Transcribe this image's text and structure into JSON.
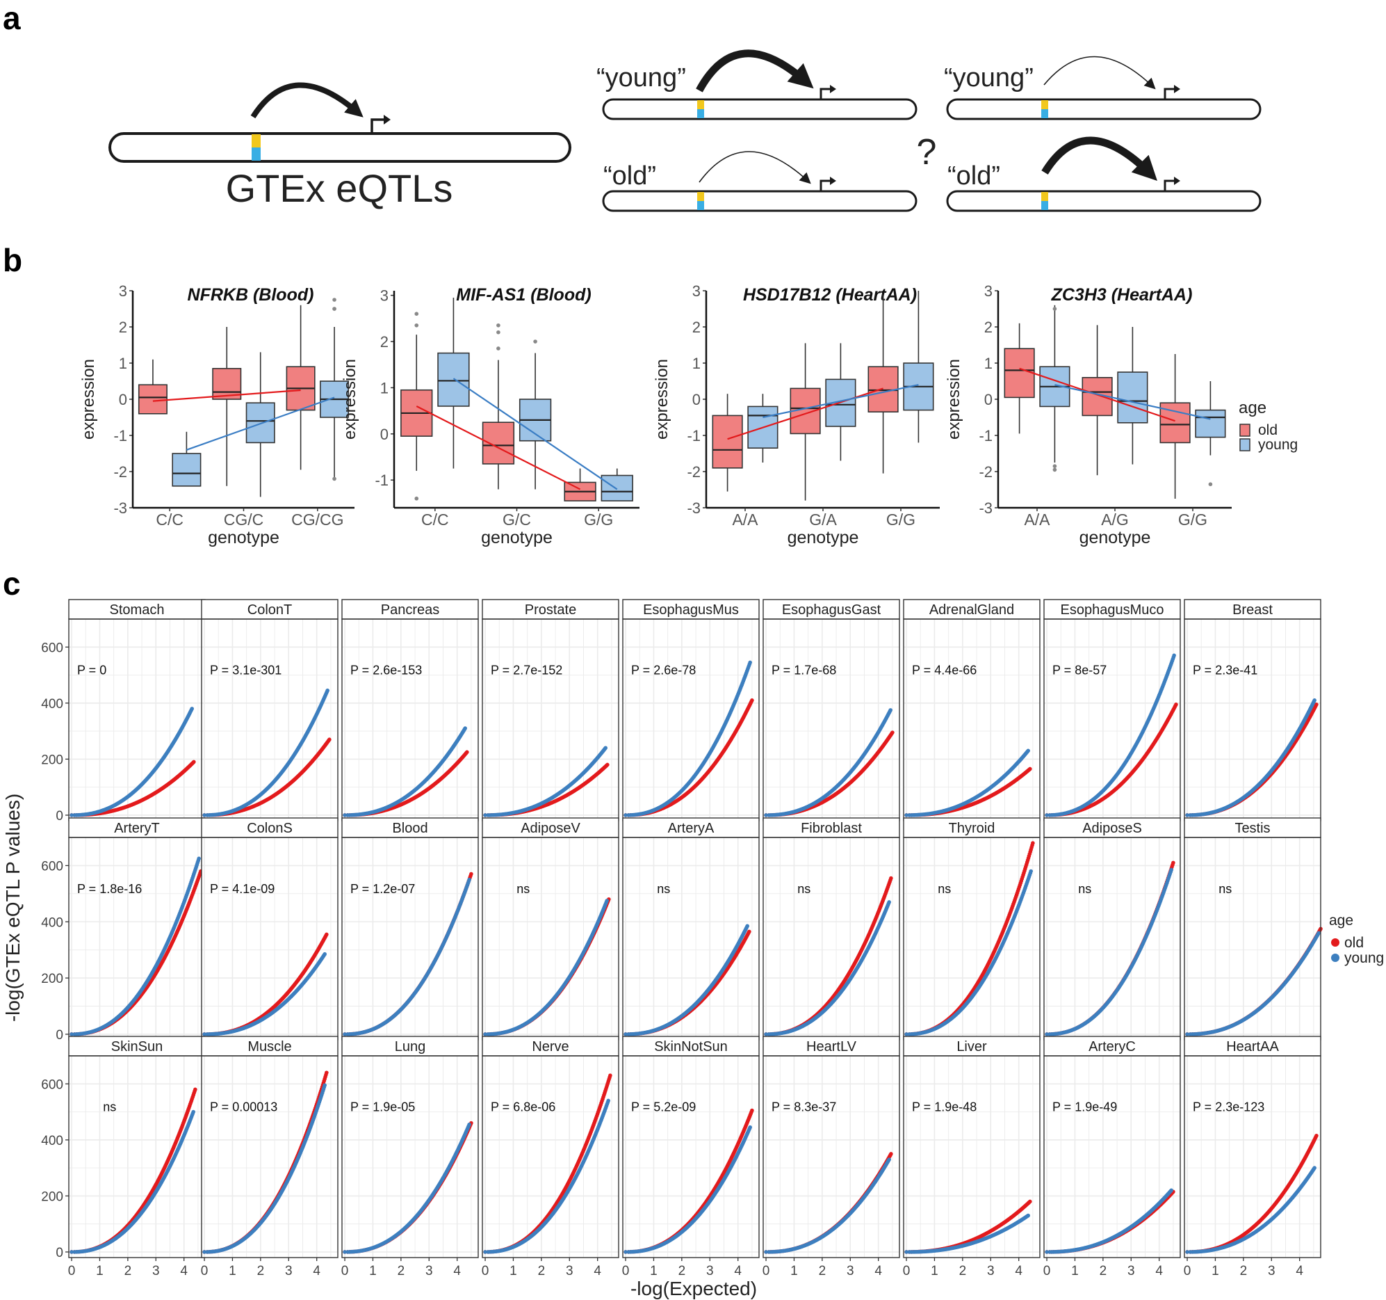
{
  "panel_letters": {
    "a": "a",
    "b": "b",
    "c": "c"
  },
  "panel_a": {
    "main_label": "GTEx eQTLs",
    "young": "“young”",
    "old": "“old”",
    "question": "?"
  },
  "colors": {
    "old_box": "#f08080",
    "young_box": "#9dc3e6",
    "old_line": "#e31a1c",
    "young_line": "#3a7dc4",
    "old_point": "#e31a1c",
    "young_point": "#3d7fbf",
    "facet_strip": "#ffffff",
    "grid": "#ebebeb"
  },
  "panel_b": {
    "xlabel": "genotype",
    "ylabel": "expression",
    "legend": {
      "title": "age",
      "items": [
        "old",
        "young"
      ]
    },
    "plots": [
      {
        "title": "NFRKB (Blood)",
        "categories": [
          "C/C",
          "CG/C",
          "CG/CG"
        ],
        "yticks": [
          "3",
          "2",
          "1",
          "0",
          "-1",
          "-2",
          "-3"
        ],
        "ylim": [
          -3,
          3
        ],
        "old": [
          {
            "whislo": -0.4,
            "q1": -0.4,
            "med": 0.05,
            "q3": 0.4,
            "whishi": 1.1,
            "outliers": []
          },
          {
            "whislo": -2.4,
            "q1": 0.0,
            "med": 0.2,
            "q3": 0.85,
            "whishi": 2.0,
            "outliers": []
          },
          {
            "whislo": -1.95,
            "q1": -0.3,
            "med": 0.3,
            "q3": 0.9,
            "whishi": 2.6,
            "outliers": []
          }
        ],
        "young": [
          {
            "whislo": -2.4,
            "q1": -2.4,
            "med": -2.05,
            "q3": -1.5,
            "whishi": -0.9,
            "outliers": []
          },
          {
            "whislo": -2.7,
            "q1": -1.2,
            "med": -0.6,
            "q3": -0.1,
            "whishi": 1.3,
            "outliers": []
          },
          {
            "whislo": -2.2,
            "q1": -0.5,
            "med": 0.0,
            "q3": 0.5,
            "whishi": 2.0,
            "outliers": [
              -2.2,
              2.5,
              2.5,
              2.75
            ]
          }
        ],
        "old_trend": [
          -0.05,
          0.25
        ],
        "young_trend": [
          -1.4,
          0.05
        ]
      },
      {
        "title": "MIF-AS1 (Blood)",
        "categories": [
          "C/C",
          "G/C",
          "G/G"
        ],
        "yticks": [
          "3",
          "2",
          "1",
          "0",
          "-1"
        ],
        "ylim": [
          -1.6,
          3.1
        ],
        "old": [
          {
            "whislo": -0.8,
            "q1": -0.05,
            "med": 0.45,
            "q3": 0.95,
            "whishi": 2.15,
            "outliers": [
              -1.4,
              2.35,
              2.6
            ]
          },
          {
            "whislo": -1.2,
            "q1": -0.65,
            "med": -0.25,
            "q3": 0.25,
            "whishi": 1.6,
            "outliers": [
              1.85,
              2.2,
              2.35
            ]
          },
          {
            "whislo": -1.45,
            "q1": -1.45,
            "med": -1.25,
            "q3": -1.05,
            "whishi": -0.75,
            "outliers": []
          }
        ],
        "young": [
          {
            "whislo": -0.75,
            "q1": 0.6,
            "med": 1.15,
            "q3": 1.75,
            "whishi": 2.95,
            "outliers": []
          },
          {
            "whislo": -1.2,
            "q1": -0.15,
            "med": 0.3,
            "q3": 0.75,
            "whishi": 1.75,
            "outliers": [
              2.0
            ]
          },
          {
            "whislo": -1.45,
            "q1": -1.45,
            "med": -1.25,
            "q3": -0.9,
            "whishi": -0.75,
            "outliers": []
          }
        ],
        "old_trend": [
          0.6,
          -1.2
        ],
        "young_trend": [
          1.2,
          -1.2
        ]
      },
      {
        "title": "HSD17B12 (HeartAA)",
        "categories": [
          "A/A",
          "G/A",
          "G/G"
        ],
        "yticks": [
          "3",
          "2",
          "1",
          "0",
          "-1",
          "-2",
          "-3"
        ],
        "ylim": [
          -3,
          3
        ],
        "old": [
          {
            "whislo": -2.55,
            "q1": -1.9,
            "med": -1.4,
            "q3": -0.45,
            "whishi": 0.15,
            "outliers": []
          },
          {
            "whislo": -2.8,
            "q1": -0.95,
            "med": -0.25,
            "q3": 0.3,
            "whishi": 1.55,
            "outliers": []
          },
          {
            "whislo": -2.05,
            "q1": -0.35,
            "med": 0.25,
            "q3": 0.9,
            "whishi": 2.9,
            "outliers": []
          }
        ],
        "young": [
          {
            "whislo": -1.75,
            "q1": -1.35,
            "med": -0.45,
            "q3": -0.2,
            "whishi": 0.15,
            "outliers": []
          },
          {
            "whislo": -1.7,
            "q1": -0.75,
            "med": -0.15,
            "q3": 0.55,
            "whishi": 1.55,
            "outliers": []
          },
          {
            "whislo": -1.2,
            "q1": -0.3,
            "med": 0.35,
            "q3": 1.0,
            "whishi": 3.0,
            "outliers": []
          }
        ],
        "old_trend": [
          -1.1,
          0.3
        ],
        "young_trend": [
          -0.5,
          0.4
        ]
      },
      {
        "title": "ZC3H3 (HeartAA)",
        "categories": [
          "A/A",
          "A/G",
          "G/G"
        ],
        "yticks": [
          "3",
          "2",
          "1",
          "0",
          "-1",
          "-2",
          "-3"
        ],
        "ylim": [
          -3,
          3
        ],
        "old": [
          {
            "whislo": -0.95,
            "q1": 0.05,
            "med": 0.8,
            "q3": 1.4,
            "whishi": 2.1,
            "outliers": []
          },
          {
            "whislo": -2.1,
            "q1": -0.45,
            "med": 0.2,
            "q3": 0.6,
            "whishi": 2.05,
            "outliers": []
          },
          {
            "whislo": -2.75,
            "q1": -1.2,
            "med": -0.7,
            "q3": -0.1,
            "whishi": 1.25,
            "outliers": []
          }
        ],
        "young": [
          {
            "whislo": -1.75,
            "q1": -0.2,
            "med": 0.35,
            "q3": 0.9,
            "whishi": 2.6,
            "outliers": [
              -1.85,
              -1.95,
              2.5
            ]
          },
          {
            "whislo": -1.8,
            "q1": -0.65,
            "med": -0.05,
            "q3": 0.75,
            "whishi": 2.0,
            "outliers": []
          },
          {
            "whislo": -1.55,
            "q1": -1.05,
            "med": -0.5,
            "q3": -0.3,
            "whishi": 0.5,
            "outliers": [
              -2.35
            ]
          }
        ],
        "old_trend": [
          0.85,
          -0.6
        ],
        "young_trend": [
          0.4,
          -0.55
        ]
      }
    ]
  },
  "chart_data": {
    "type": "scatter",
    "xlabel": "-log(Expected)",
    "ylabel": "-log(GTEx eQTL P values)",
    "xticks": [
      "0",
      "1",
      "2",
      "3",
      "4"
    ],
    "yticks": [
      "0",
      "200",
      "400",
      "600"
    ],
    "xlim": [
      -0.1,
      4.75
    ],
    "ylim": [
      -20,
      700
    ],
    "legend": {
      "title": "age",
      "items": [
        "old",
        "young"
      ]
    },
    "facets": [
      {
        "name": "Stomach",
        "p": "P =  0",
        "old_end": 190,
        "young_end": 380,
        "xmax": 4.35
      },
      {
        "name": "ColonT",
        "p": "P =  3.1e-301",
        "old_end": 270,
        "young_end": 445,
        "xmax": 4.45
      },
      {
        "name": "Pancreas",
        "p": "P =  2.6e-153",
        "old_end": 225,
        "young_end": 310,
        "xmax": 4.35
      },
      {
        "name": "Prostate",
        "p": "P =  2.7e-152",
        "old_end": 180,
        "young_end": 240,
        "xmax": 4.35
      },
      {
        "name": "EsophagusMus",
        "p": "P =  2.6e-78",
        "old_end": 410,
        "young_end": 545,
        "xmax": 4.5
      },
      {
        "name": "EsophagusGast",
        "p": "P =  1.7e-68",
        "old_end": 295,
        "young_end": 375,
        "xmax": 4.5
      },
      {
        "name": "AdrenalGland",
        "p": "P =  4.4e-66",
        "old_end": 165,
        "young_end": 230,
        "xmax": 4.4
      },
      {
        "name": "EsophagusMuco",
        "p": "P =  8e-57",
        "old_end": 395,
        "young_end": 570,
        "xmax": 4.6
      },
      {
        "name": "Breast",
        "p": "P =  2.3e-41",
        "old_end": 395,
        "young_end": 410,
        "xmax": 4.6
      },
      {
        "name": "ArteryT",
        "p": "P =  1.8e-16",
        "old_end": 580,
        "young_end": 625,
        "xmax": 4.6
      },
      {
        "name": "ColonS",
        "p": "P =  4.1e-09",
        "old_end": 355,
        "young_end": 285,
        "xmax": 4.35
      },
      {
        "name": "Blood",
        "p": "P =  1.2e-07",
        "old_end": 570,
        "young_end": 550,
        "xmax": 4.5
      },
      {
        "name": "AdiposeV",
        "p": "ns",
        "old_end": 480,
        "young_end": 475,
        "xmax": 4.4
      },
      {
        "name": "ArteryA",
        "p": "ns",
        "old_end": 365,
        "young_end": 385,
        "xmax": 4.4
      },
      {
        "name": "Fibroblast",
        "p": "ns",
        "old_end": 555,
        "young_end": 470,
        "xmax": 4.45
      },
      {
        "name": "Thyroid",
        "p": "ns",
        "old_end": 680,
        "young_end": 580,
        "xmax": 4.5
      },
      {
        "name": "AdiposeS",
        "p": "ns",
        "old_end": 610,
        "young_end": 585,
        "xmax": 4.5
      },
      {
        "name": "Testis",
        "p": "ns",
        "old_end": 375,
        "young_end": 360,
        "xmax": 4.75
      },
      {
        "name": "SkinSun",
        "p": "ns",
        "old_end": 580,
        "young_end": 500,
        "xmax": 4.4
      },
      {
        "name": "Muscle",
        "p": "P =  0.00013",
        "old_end": 640,
        "young_end": 595,
        "xmax": 4.35
      },
      {
        "name": "Lung",
        "p": "P =  1.9e-05",
        "old_end": 460,
        "young_end": 455,
        "xmax": 4.5
      },
      {
        "name": "Nerve",
        "p": "P =  6.8e-06",
        "old_end": 630,
        "young_end": 540,
        "xmax": 4.45
      },
      {
        "name": "SkinNotSun",
        "p": "P =  5.2e-09",
        "old_end": 505,
        "young_end": 445,
        "xmax": 4.5
      },
      {
        "name": "HeartLV",
        "p": "P =  8.3e-37",
        "old_end": 350,
        "young_end": 330,
        "xmax": 4.45
      },
      {
        "name": "Liver",
        "p": "P =  1.9e-48",
        "old_end": 180,
        "young_end": 130,
        "xmax": 4.4
      },
      {
        "name": "ArteryC",
        "p": "P =  1.9e-49",
        "old_end": 215,
        "young_end": 220,
        "xmax": 4.5
      },
      {
        "name": "HeartAA",
        "p": "P =  2.3e-123",
        "old_end": 415,
        "young_end": 300,
        "xmax": 4.6
      }
    ]
  }
}
